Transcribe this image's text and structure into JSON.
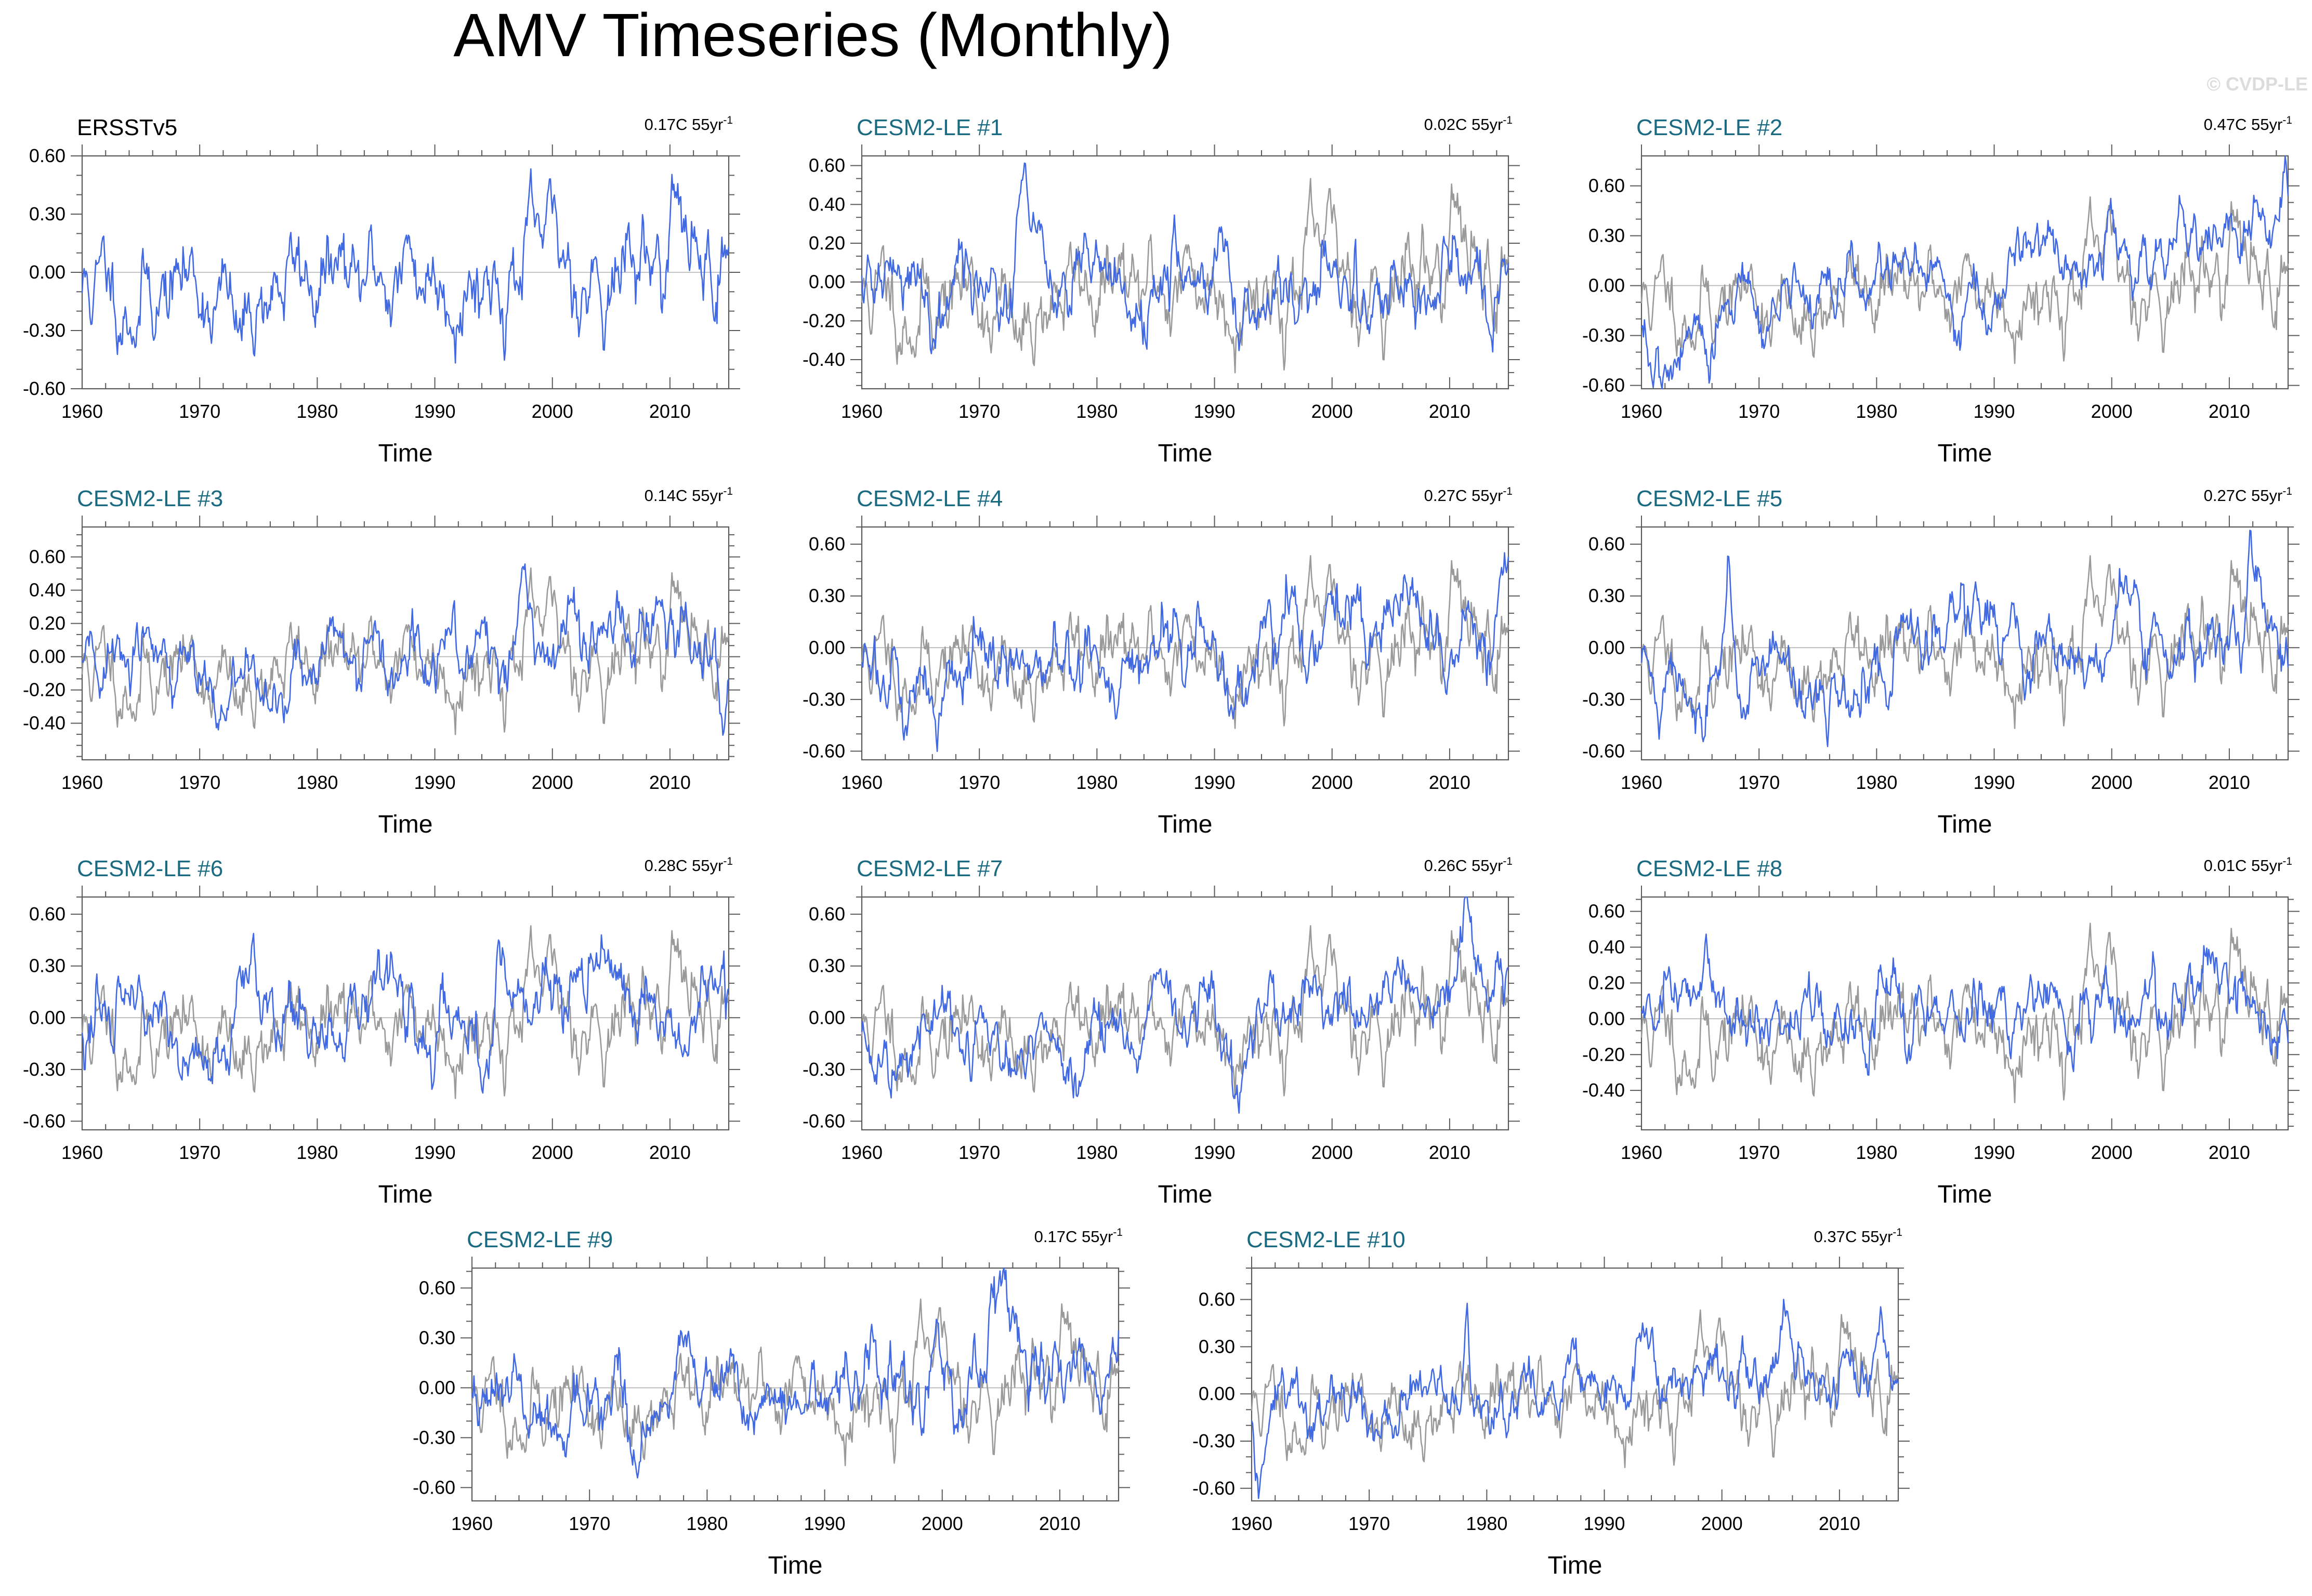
{
  "title": "AMV Timeseries (Monthly)",
  "watermark": "© CVDP-LE",
  "colors": {
    "observation": "#000000",
    "member_title": "#1a6a82",
    "member_series": "#4169e1",
    "obs_series": "#4169e1",
    "reference_series": "#9a9a9a",
    "zero_line": "#b0b0b0",
    "frame": "#000000"
  },
  "chart_data": [
    {
      "type": "line",
      "panel_title": "ERSSTv5",
      "is_observation": true,
      "trend_label": "0.17C 55yr",
      "trend_exp": "-1",
      "xlabel": "Time",
      "x_range": [
        1960,
        2015
      ],
      "xticks": [
        1960,
        1970,
        1980,
        1990,
        2000,
        2010
      ],
      "yticks": [
        -0.6,
        -0.3,
        0.0,
        0.3,
        0.6
      ],
      "ytick_labels": [
        "-0.60",
        "-0.30",
        "0.00",
        "0.30",
        "0.60"
      ],
      "ylim": [
        -0.6,
        0.6
      ],
      "series": [
        {
          "name": "ERSSTv5",
          "style": "blue",
          "seed": 11,
          "trend": 0.17,
          "amp": 0.17,
          "mean": 0.0,
          "events": [
            [
              1973.5,
              -0.35,
              1.2
            ],
            [
              2010.3,
              0.35,
              0.6
            ],
            [
              1983.5,
              -0.25,
              0.6
            ]
          ]
        }
      ]
    },
    {
      "type": "line",
      "panel_title": "CESM2-LE #1",
      "is_observation": false,
      "trend_label": "0.02C 55yr",
      "trend_exp": "-1",
      "xlabel": "Time",
      "x_range": [
        1960,
        2015
      ],
      "xticks": [
        1960,
        1970,
        1980,
        1990,
        2000,
        2010
      ],
      "yticks": [
        -0.4,
        -0.2,
        0.0,
        0.2,
        0.4,
        0.6
      ],
      "ytick_labels": [
        "-0.40",
        "-0.20",
        "0.00",
        "0.20",
        "0.40",
        "0.60"
      ],
      "ylim": [
        -0.55,
        0.65
      ],
      "series": [
        {
          "name": "ERSSTv5",
          "style": "gray",
          "seed": 11,
          "trend": 0.17,
          "amp": 0.17,
          "mean": 0.0,
          "events": [
            [
              1973.5,
              -0.35,
              1.2
            ],
            [
              2010.3,
              0.35,
              0.6
            ],
            [
              1983.5,
              -0.25,
              0.6
            ]
          ]
        },
        {
          "name": "CESM2-LE #1",
          "style": "blue",
          "seed": 21,
          "trend": 0.02,
          "amp": 0.14,
          "mean": 0.0,
          "events": [
            [
              1973.6,
              0.4,
              0.8
            ],
            [
              2013.5,
              -0.25,
              1.0
            ]
          ]
        }
      ]
    },
    {
      "type": "line",
      "panel_title": "CESM2-LE #2",
      "is_observation": false,
      "trend_label": "0.47C 55yr",
      "trend_exp": "-1",
      "xlabel": "Time",
      "x_range": [
        1960,
        2015
      ],
      "xticks": [
        1960,
        1970,
        1980,
        1990,
        2000,
        2010
      ],
      "yticks": [
        -0.6,
        -0.3,
        0.0,
        0.3,
        0.6
      ],
      "ytick_labels": [
        "-0.60",
        "-0.30",
        "0.00",
        "0.30",
        "0.60"
      ],
      "ylim": [
        -0.62,
        0.78
      ],
      "series": [
        {
          "name": "ERSSTv5",
          "style": "gray",
          "seed": 11,
          "trend": 0.17,
          "amp": 0.17,
          "mean": 0.0,
          "events": [
            [
              1973.5,
              -0.35,
              1.2
            ],
            [
              2010.3,
              0.35,
              0.6
            ],
            [
              1983.5,
              -0.25,
              0.6
            ]
          ]
        },
        {
          "name": "CESM2-LE #2",
          "style": "blue",
          "seed": 32,
          "trend": 0.47,
          "amp": 0.14,
          "mean": 0.0,
          "events": [
            [
              1961.5,
              -0.3,
              1.2
            ],
            [
              2014.8,
              0.45,
              0.25
            ]
          ]
        }
      ]
    },
    {
      "type": "line",
      "panel_title": "CESM2-LE #3",
      "is_observation": false,
      "trend_label": "0.14C 55yr",
      "trend_exp": "-1",
      "xlabel": "Time",
      "x_range": [
        1960,
        2015
      ],
      "xticks": [
        1960,
        1970,
        1980,
        1990,
        2000,
        2010
      ],
      "yticks": [
        -0.4,
        -0.2,
        0.0,
        0.2,
        0.4,
        0.6
      ],
      "ytick_labels": [
        "-0.40",
        "-0.20",
        "0.00",
        "0.20",
        "0.40",
        "0.60"
      ],
      "ylim": [
        -0.62,
        0.78
      ],
      "series": [
        {
          "name": "ERSSTv5",
          "style": "gray",
          "seed": 11,
          "trend": 0.17,
          "amp": 0.17,
          "mean": 0.0,
          "events": [
            [
              1973.5,
              -0.35,
              1.2
            ],
            [
              2010.3,
              0.35,
              0.6
            ],
            [
              1983.5,
              -0.25,
              0.6
            ]
          ]
        },
        {
          "name": "CESM2-LE #3",
          "style": "blue",
          "seed": 43,
          "trend": 0.14,
          "amp": 0.15,
          "mean": 0.0,
          "events": [
            [
              1997.6,
              0.55,
              0.6
            ],
            [
              2014.5,
              -0.3,
              0.4
            ]
          ]
        }
      ]
    },
    {
      "type": "line",
      "panel_title": "CESM2-LE #4",
      "is_observation": false,
      "trend_label": "0.27C 55yr",
      "trend_exp": "-1",
      "xlabel": "Time",
      "x_range": [
        1960,
        2015
      ],
      "xticks": [
        1960,
        1970,
        1980,
        1990,
        2000,
        2010
      ],
      "yticks": [
        -0.6,
        -0.3,
        0.0,
        0.3,
        0.6
      ],
      "ytick_labels": [
        "-0.60",
        "-0.30",
        "0.00",
        "0.30",
        "0.60"
      ],
      "ylim": [
        -0.65,
        0.7
      ],
      "series": [
        {
          "name": "ERSSTv5",
          "style": "gray",
          "seed": 11,
          "trend": 0.17,
          "amp": 0.17,
          "mean": 0.0,
          "events": [
            [
              1973.5,
              -0.35,
              1.2
            ],
            [
              2010.3,
              0.35,
              0.6
            ],
            [
              1983.5,
              -0.25,
              0.6
            ]
          ]
        },
        {
          "name": "CESM2-LE #4",
          "style": "blue",
          "seed": 54,
          "trend": 0.27,
          "amp": 0.16,
          "mean": 0.0,
          "events": [
            [
              1966.5,
              -0.4,
              0.8
            ],
            [
              2004.0,
              0.4,
              0.5
            ]
          ]
        }
      ]
    },
    {
      "type": "line",
      "panel_title": "CESM2-LE #5",
      "is_observation": false,
      "trend_label": "0.27C 55yr",
      "trend_exp": "-1",
      "xlabel": "Time",
      "x_range": [
        1960,
        2015
      ],
      "xticks": [
        1960,
        1970,
        1980,
        1990,
        2000,
        2010
      ],
      "yticks": [
        -0.6,
        -0.3,
        0.0,
        0.3,
        0.6
      ],
      "ytick_labels": [
        "-0.60",
        "-0.30",
        "0.00",
        "0.30",
        "0.60"
      ],
      "ylim": [
        -0.65,
        0.7
      ],
      "series": [
        {
          "name": "ERSSTv5",
          "style": "gray",
          "seed": 11,
          "trend": 0.17,
          "amp": 0.17,
          "mean": 0.0,
          "events": [
            [
              1973.5,
              -0.35,
              1.2
            ],
            [
              2010.3,
              0.35,
              0.6
            ],
            [
              1983.5,
              -0.25,
              0.6
            ]
          ]
        },
        {
          "name": "CESM2-LE #5",
          "style": "blue",
          "seed": 65,
          "trend": 0.27,
          "amp": 0.15,
          "mean": 0.0,
          "events": [
            [
              1961.5,
              -0.4,
              0.6
            ],
            [
              1967.4,
              0.45,
              0.3
            ],
            [
              2011.8,
              0.4,
              0.5
            ]
          ]
        }
      ]
    },
    {
      "type": "line",
      "panel_title": "CESM2-LE #6",
      "is_observation": false,
      "trend_label": "0.28C 55yr",
      "trend_exp": "-1",
      "xlabel": "Time",
      "x_range": [
        1960,
        2015
      ],
      "xticks": [
        1960,
        1970,
        1980,
        1990,
        2000,
        2010
      ],
      "yticks": [
        -0.6,
        -0.3,
        0.0,
        0.3,
        0.6
      ],
      "ytick_labels": [
        "-0.60",
        "-0.30",
        "0.00",
        "0.30",
        "0.60"
      ],
      "ylim": [
        -0.65,
        0.7
      ],
      "series": [
        {
          "name": "ERSSTv5",
          "style": "gray",
          "seed": 11,
          "trend": 0.17,
          "amp": 0.17,
          "mean": 0.0,
          "events": [
            [
              1973.5,
              -0.35,
              1.2
            ],
            [
              2010.3,
              0.35,
              0.6
            ],
            [
              1983.5,
              -0.25,
              0.6
            ]
          ]
        },
        {
          "name": "CESM2-LE #6",
          "style": "blue",
          "seed": 76,
          "trend": 0.28,
          "amp": 0.16,
          "mean": 0.0,
          "events": [
            [
              1995.5,
              0.45,
              0.6
            ],
            [
              1989.5,
              -0.35,
              0.8
            ]
          ]
        }
      ]
    },
    {
      "type": "line",
      "panel_title": "CESM2-LE #7",
      "is_observation": false,
      "trend_label": "0.26C 55yr",
      "trend_exp": "-1",
      "xlabel": "Time",
      "x_range": [
        1960,
        2015
      ],
      "xticks": [
        1960,
        1970,
        1980,
        1990,
        2000,
        2010
      ],
      "yticks": [
        -0.6,
        -0.3,
        0.0,
        0.3,
        0.6
      ],
      "ytick_labels": [
        "-0.60",
        "-0.30",
        "0.00",
        "0.30",
        "0.60"
      ],
      "ylim": [
        -0.65,
        0.7
      ],
      "series": [
        {
          "name": "ERSSTv5",
          "style": "gray",
          "seed": 11,
          "trend": 0.17,
          "amp": 0.17,
          "mean": 0.0,
          "events": [
            [
              1973.5,
              -0.35,
              1.2
            ],
            [
              2010.3,
              0.35,
              0.6
            ],
            [
              1983.5,
              -0.25,
              0.6
            ]
          ]
        },
        {
          "name": "CESM2-LE #7",
          "style": "blue",
          "seed": 87,
          "trend": 0.26,
          "amp": 0.14,
          "mean": 0.0,
          "events": [
            [
              1991.8,
              -0.4,
              0.8
            ],
            [
              2011.6,
              0.45,
              0.6
            ]
          ]
        }
      ]
    },
    {
      "type": "line",
      "panel_title": "CESM2-LE #8",
      "is_observation": false,
      "trend_label": "0.01C 55yr",
      "trend_exp": "-1",
      "xlabel": "Time",
      "x_range": [
        1960,
        2015
      ],
      "xticks": [
        1960,
        1970,
        1980,
        1990,
        2000,
        2010
      ],
      "yticks": [
        -0.4,
        -0.2,
        0.0,
        0.2,
        0.4,
        0.6
      ],
      "ytick_labels": [
        "-0.40",
        "-0.20",
        "0.00",
        "0.20",
        "0.40",
        "0.60"
      ],
      "ylim": [
        -0.62,
        0.68
      ],
      "series": [
        {
          "name": "ERSSTv5",
          "style": "gray",
          "seed": 11,
          "trend": 0.17,
          "amp": 0.17,
          "mean": 0.0,
          "events": [
            [
              1973.5,
              -0.35,
              1.2
            ],
            [
              2010.3,
              0.35,
              0.6
            ],
            [
              1983.5,
              -0.25,
              0.6
            ]
          ]
        },
        {
          "name": "CESM2-LE #8",
          "style": "blue",
          "seed": 98,
          "trend": 0.01,
          "amp": 0.14,
          "mean": 0.0,
          "events": [
            [
              1999.6,
              0.45,
              0.6
            ],
            [
              1982.8,
              -0.4,
              0.4
            ],
            [
              1966.0,
              0.2,
              1.5
            ]
          ]
        }
      ]
    },
    {
      "type": "line",
      "panel_title": "CESM2-LE #9",
      "is_observation": false,
      "trend_label": "0.17C 55yr",
      "trend_exp": "-1",
      "xlabel": "Time",
      "x_range": [
        1960,
        2015
      ],
      "xticks": [
        1960,
        1970,
        1980,
        1990,
        2000,
        2010
      ],
      "yticks": [
        -0.6,
        -0.3,
        0.0,
        0.3,
        0.6
      ],
      "ytick_labels": [
        "-0.60",
        "-0.30",
        "0.00",
        "0.30",
        "0.60"
      ],
      "ylim": [
        -0.68,
        0.72
      ],
      "series": [
        {
          "name": "ERSSTv5",
          "style": "gray",
          "seed": 11,
          "trend": 0.17,
          "amp": 0.17,
          "mean": 0.0,
          "events": [
            [
              1973.5,
              -0.35,
              1.2
            ],
            [
              2010.3,
              0.35,
              0.6
            ],
            [
              1983.5,
              -0.25,
              0.6
            ]
          ]
        },
        {
          "name": "CESM2-LE #9",
          "style": "blue",
          "seed": 109,
          "trend": 0.17,
          "amp": 0.16,
          "mean": 0.0,
          "events": [
            [
              1974.2,
              -0.4,
              0.8
            ],
            [
              2004.5,
              0.45,
              0.6
            ]
          ]
        }
      ]
    },
    {
      "type": "line",
      "panel_title": "CESM2-LE #10",
      "is_observation": false,
      "trend_label": "0.37C 55yr",
      "trend_exp": "-1",
      "xlabel": "Time",
      "x_range": [
        1960,
        2015
      ],
      "xticks": [
        1960,
        1970,
        1980,
        1990,
        2000,
        2010
      ],
      "yticks": [
        -0.6,
        -0.3,
        0.0,
        0.3,
        0.6
      ],
      "ytick_labels": [
        "-0.60",
        "-0.30",
        "0.00",
        "0.30",
        "0.60"
      ],
      "ylim": [
        -0.68,
        0.8
      ],
      "series": [
        {
          "name": "ERSSTv5",
          "style": "gray",
          "seed": 11,
          "trend": 0.17,
          "amp": 0.17,
          "mean": 0.0,
          "events": [
            [
              1973.5,
              -0.35,
              1.2
            ],
            [
              2010.3,
              0.35,
              0.6
            ],
            [
              1983.5,
              -0.25,
              0.6
            ]
          ]
        },
        {
          "name": "CESM2-LE #10",
          "style": "blue",
          "seed": 120,
          "trend": 0.37,
          "amp": 0.14,
          "mean": 0.0,
          "events": [
            [
              1978.3,
              0.75,
              0.35
            ],
            [
              1960.8,
              -0.45,
              0.5
            ],
            [
              2013.5,
              0.35,
              0.5
            ]
          ]
        }
      ]
    }
  ]
}
